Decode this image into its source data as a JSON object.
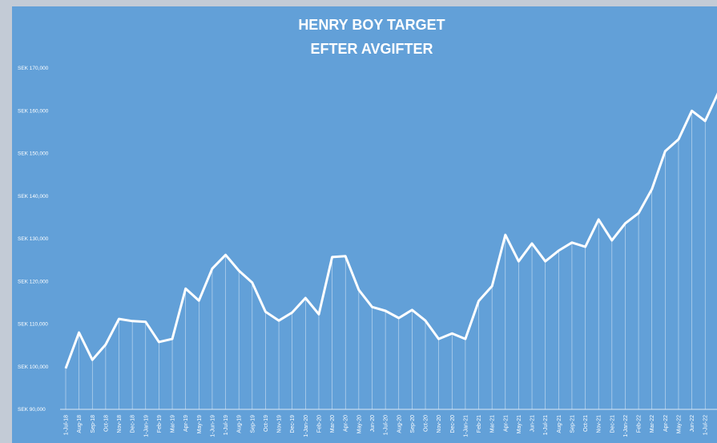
{
  "chart_data": {
    "type": "line",
    "title": [
      "HENRY BOY TARGET",
      "EFTER AVGIFTER"
    ],
    "categories": [
      "1-Jul-18",
      "Aug-18",
      "Sep-18",
      "Oct-18",
      "Nov-18",
      "Dec-18",
      "1-Jan-19",
      "Feb-19",
      "Mar-19",
      "Apr-19",
      "May-19",
      "1-Jun-19",
      "1-Jul-19",
      "Aug-19",
      "Sep-19",
      "Oct-19",
      "Nov-19",
      "Dec-19",
      "1-Jan-20",
      "Feb-20",
      "Mar-20",
      "Apr-20",
      "May-20",
      "Jun-20",
      "1-Jul-20",
      "Aug-20",
      "Sep-20",
      "Oct-20",
      "Nov-20",
      "Dec-20",
      "1-Jan-21",
      "Feb-21",
      "Mar-21",
      "Apr-21",
      "May-21",
      "Jun-21",
      "1-Jul-21",
      "Aug-21",
      "Sep-21",
      "Oct-21",
      "Nov-21",
      "Dec-21",
      "1-Jan-22",
      "Feb-22",
      "Mar-22",
      "Apr-22",
      "May-22",
      "Jun-22",
      "1-Jul-22",
      null
    ],
    "series": [
      {
        "name": "Henry Boy Target",
        "color": "#ffffff",
        "values": [
          99600,
          108000,
          101600,
          105200,
          111200,
          110700,
          110500,
          105800,
          106500,
          118300,
          115500,
          123000,
          126200,
          122500,
          119700,
          112900,
          110800,
          112700,
          116100,
          112300,
          125700,
          125900,
          118000,
          114000,
          113100,
          111400,
          113300,
          110800,
          106500,
          107800,
          106500,
          115400,
          118900,
          130900,
          124700,
          128900,
          124700,
          127200,
          129100,
          128100,
          134500,
          129600,
          133600,
          136000,
          141600,
          150500,
          153300,
          160000,
          157600,
          164400
        ]
      }
    ],
    "ylim": [
      90000,
      170000
    ],
    "yticks": [
      {
        "value": 90000,
        "label": "SEK 90,000"
      },
      {
        "value": 100000,
        "label": "SEK 100,000"
      },
      {
        "value": 110000,
        "label": "SEK 110,000"
      },
      {
        "value": 120000,
        "label": "SEK 120,000"
      },
      {
        "value": 130000,
        "label": "SEK 130,000"
      },
      {
        "value": 140000,
        "label": "SEK 140,000"
      },
      {
        "value": 150000,
        "label": "SEK 150,000"
      },
      {
        "value": 160000,
        "label": "SEK 160,000"
      },
      {
        "value": 170000,
        "label": "SEK 170,000"
      }
    ],
    "drop_lines": true
  }
}
